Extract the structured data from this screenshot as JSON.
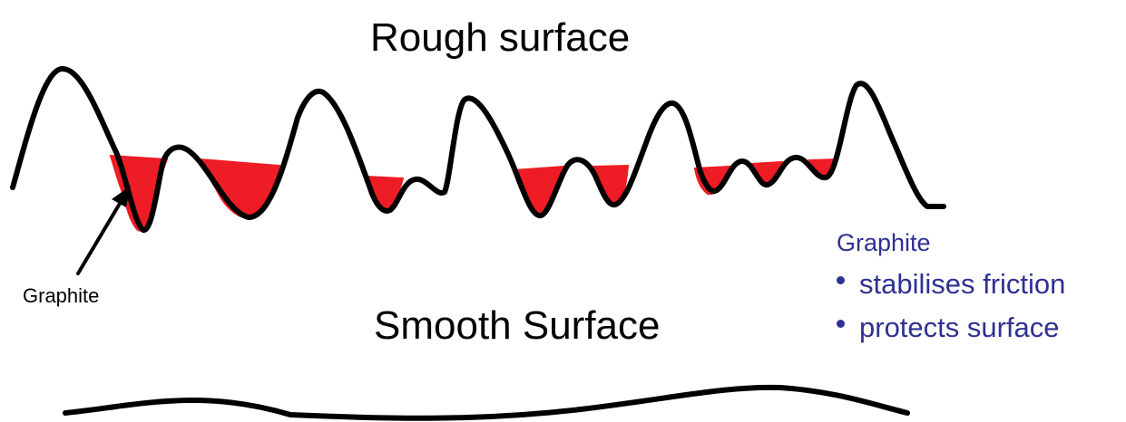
{
  "diagram": {
    "rough_title": "Rough surface",
    "smooth_title": "Smooth Surface",
    "arrow_label": "Graphite",
    "legend": {
      "title": "Graphite",
      "items": [
        "stabilises friction",
        "protects surface"
      ]
    },
    "colors": {
      "graphite_fill": "#ee1c25",
      "outline": "#000000",
      "legend_text": "#2e3192"
    }
  }
}
